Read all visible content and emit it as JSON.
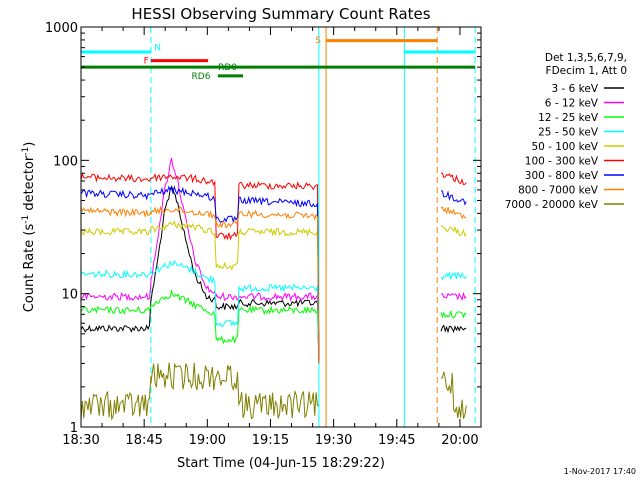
{
  "chart_data": {
    "type": "line",
    "title": "HESSI Observing Summary Count Rates",
    "xlabel": "Start Time (04-Jun-15 18:29:22)",
    "ylabel_main": "Count Rate (s",
    "ylabel_sup1": "-1",
    "ylabel_mid": " detector",
    "ylabel_sup2": "-1",
    "ylabel_end": ")",
    "timestamp": "1-Nov-2017 17:40",
    "y_scale": "log",
    "ylim": [
      1,
      1000
    ],
    "xlim": [
      "18:30",
      "20:05"
    ],
    "x_ticks": [
      {
        "label": "18:30",
        "t": 0
      },
      {
        "label": "18:45",
        "t": 15
      },
      {
        "label": "19:00",
        "t": 30
      },
      {
        "label": "19:15",
        "t": 45
      },
      {
        "label": "19:30",
        "t": 60
      },
      {
        "label": "19:45",
        "t": 75
      },
      {
        "label": "20:00",
        "t": 90
      }
    ],
    "y_ticks": [
      {
        "label": "1",
        "v": 1
      },
      {
        "label": "10",
        "v": 10
      },
      {
        "label": "100",
        "v": 100
      },
      {
        "label": "1000",
        "v": 1000
      }
    ],
    "legend_header": [
      "Det 1,3,5,6,7,9,",
      "FDecim 1, Att 0"
    ],
    "legend_position": "right",
    "series": [
      {
        "name": "3 - 6 keV",
        "color": "#000000",
        "points": [
          [
            0,
            5.5
          ],
          [
            16.6,
            5.5
          ],
          [
            16.6,
            9
          ],
          [
            18,
            16
          ],
          [
            19.8,
            40
          ],
          [
            21.5,
            62
          ],
          [
            23,
            48
          ],
          [
            24.5,
            28
          ],
          [
            27,
            14
          ],
          [
            29.8,
            9.5
          ],
          [
            32.1,
            9
          ],
          [
            32.1,
            8
          ],
          [
            37.5,
            8
          ],
          [
            37.5,
            8.5
          ],
          [
            56.5,
            8.5
          ],
          [
            56.5,
            3
          ]
        ],
        "points2": [
          [
            85.5,
            5.5
          ],
          [
            91.5,
            5.5
          ]
        ]
      },
      {
        "name": "6 - 12 keV",
        "color": "#ff00ff",
        "points": [
          [
            0,
            9.5
          ],
          [
            16.6,
            9.5
          ],
          [
            16.6,
            12
          ],
          [
            18,
            24
          ],
          [
            19.8,
            58
          ],
          [
            21.5,
            102
          ],
          [
            23,
            70
          ],
          [
            24.5,
            40
          ],
          [
            27,
            18
          ],
          [
            29.8,
            11
          ],
          [
            32.1,
            10
          ],
          [
            32.1,
            9.5
          ],
          [
            56.5,
            9.5
          ],
          [
            56.5,
            3
          ]
        ],
        "points2": [
          [
            85.5,
            9.5
          ],
          [
            91.5,
            9.5
          ]
        ]
      },
      {
        "name": "12 - 25 keV",
        "color": "#00ff00",
        "points": [
          [
            0,
            7.5
          ],
          [
            16.6,
            7.5
          ],
          [
            16.6,
            8
          ],
          [
            18.5,
            9
          ],
          [
            21.5,
            10
          ],
          [
            24.5,
            9
          ],
          [
            29.8,
            7.5
          ],
          [
            32.1,
            7
          ],
          [
            32.1,
            4.5
          ],
          [
            37.5,
            4.5
          ],
          [
            37.5,
            7.5
          ],
          [
            56.5,
            7.5
          ],
          [
            56.5,
            3
          ]
        ],
        "points2": [
          [
            85.5,
            7
          ],
          [
            91.5,
            7
          ]
        ]
      },
      {
        "name": "25 - 50 keV",
        "color": "#00ffff",
        "points": [
          [
            0,
            14
          ],
          [
            16.6,
            14
          ],
          [
            16.6,
            14.5
          ],
          [
            21.5,
            17
          ],
          [
            26.5,
            15
          ],
          [
            29.8,
            13
          ],
          [
            32.1,
            12.5
          ],
          [
            32.1,
            6
          ],
          [
            37.5,
            6
          ],
          [
            37.5,
            11
          ],
          [
            56.5,
            11
          ],
          [
            56.5,
            3
          ]
        ],
        "points2": [
          [
            85.5,
            13.5
          ],
          [
            91.5,
            13.5
          ]
        ]
      },
      {
        "name": "50 - 100 keV",
        "color": "#cccc00",
        "points": [
          [
            0,
            29
          ],
          [
            16.6,
            29
          ],
          [
            16.6,
            30
          ],
          [
            21.5,
            33
          ],
          [
            26.5,
            32
          ],
          [
            29.8,
            30
          ],
          [
            32.1,
            29
          ],
          [
            32.1,
            16
          ],
          [
            37.5,
            16
          ],
          [
            37.5,
            29
          ],
          [
            56.5,
            29
          ],
          [
            56.5,
            3
          ]
        ],
        "points2": [
          [
            85.5,
            32
          ],
          [
            91.5,
            28
          ]
        ]
      },
      {
        "name": "100 - 300 keV",
        "color": "#ff0000",
        "points": [
          [
            0,
            75
          ],
          [
            16.6,
            72
          ],
          [
            16.6,
            74
          ],
          [
            21.5,
            76
          ],
          [
            26.5,
            73
          ],
          [
            29.8,
            70
          ],
          [
            32.1,
            68
          ],
          [
            32.1,
            27
          ],
          [
            37.5,
            27
          ],
          [
            37.5,
            65
          ],
          [
            56.5,
            64
          ],
          [
            56.5,
            3
          ]
        ],
        "points2": [
          [
            85.5,
            80
          ],
          [
            91.5,
            68
          ]
        ]
      },
      {
        "name": "300 - 800 keV",
        "color": "#0000ff",
        "points": [
          [
            0,
            57
          ],
          [
            16.6,
            54
          ],
          [
            16.6,
            56
          ],
          [
            21.5,
            60
          ],
          [
            26.5,
            57
          ],
          [
            29.8,
            54
          ],
          [
            32.1,
            51
          ],
          [
            32.1,
            36
          ],
          [
            37.5,
            36
          ],
          [
            37.5,
            50
          ],
          [
            56.5,
            47
          ],
          [
            56.5,
            3
          ]
        ],
        "points2": [
          [
            85.5,
            57
          ],
          [
            91.5,
            49
          ]
        ]
      },
      {
        "name": "800 - 7000 keV",
        "color": "#ff7f00",
        "points": [
          [
            0,
            42
          ],
          [
            16.6,
            40
          ],
          [
            16.6,
            41
          ],
          [
            21.5,
            43
          ],
          [
            26.5,
            41
          ],
          [
            29.8,
            40
          ],
          [
            32.1,
            39
          ],
          [
            32.1,
            33
          ],
          [
            37.5,
            33
          ],
          [
            37.5,
            40
          ],
          [
            56.5,
            38
          ],
          [
            56.5,
            3
          ]
        ],
        "points2": [
          [
            85.5,
            44
          ],
          [
            91.5,
            37
          ]
        ]
      },
      {
        "name": "7000 - 20000 keV",
        "color": "#7f7f00",
        "points": [
          [
            0,
            1.45
          ],
          [
            16.6,
            1.45
          ],
          [
            16.6,
            2.4
          ],
          [
            37.5,
            2.4
          ],
          [
            37.5,
            1.45
          ],
          [
            56.5,
            1.45
          ]
        ],
        "points2": [
          [
            85.5,
            2.2
          ],
          [
            88.5,
            2.2
          ],
          [
            88.5,
            1.45
          ],
          [
            91.5,
            1.45
          ]
        ]
      }
    ],
    "annotations": [
      {
        "label": "N",
        "color": "#00ffff",
        "segments": [
          [
            0,
            16.6,
            650
          ],
          [
            76.8,
            93.6,
            650
          ]
        ],
        "label_t": 18.2,
        "label_v": 700
      },
      {
        "label": "F",
        "color": "#ff0000",
        "segments": [
          [
            16.6,
            30.2,
            560
          ]
        ],
        "label_t": 15.5,
        "label_v": 560
      },
      {
        "label": "RD0",
        "color": "#007f00",
        "segments": [
          [
            0,
            93.6,
            500
          ]
        ],
        "label_t": 34.8,
        "label_v": 500
      },
      {
        "label": "RD6",
        "color": "#007f00",
        "segments": [
          [
            32.5,
            38.5,
            430
          ]
        ],
        "label_t": 28.5,
        "label_v": 430
      },
      {
        "label": "S",
        "color": "#ff7f00",
        "segments": [
          [
            58.2,
            84.6,
            790
          ]
        ],
        "label_t": 56.3,
        "label_v": 800
      }
    ],
    "vertical_markers": [
      {
        "t": 0,
        "color": "#00ffff",
        "dash": false
      },
      {
        "t": 16.6,
        "color": "#00ffff",
        "dash": true
      },
      {
        "t": 56.5,
        "color": "#00ffff",
        "dash": false
      },
      {
        "t": 58.2,
        "color": "#ff7f00",
        "dash": false
      },
      {
        "t": 76.8,
        "color": "#00ffff",
        "dash": false
      },
      {
        "t": 84.6,
        "color": "#ff7f00",
        "dash": true
      },
      {
        "t": 93.6,
        "color": "#00ffff",
        "dash": true
      }
    ]
  }
}
